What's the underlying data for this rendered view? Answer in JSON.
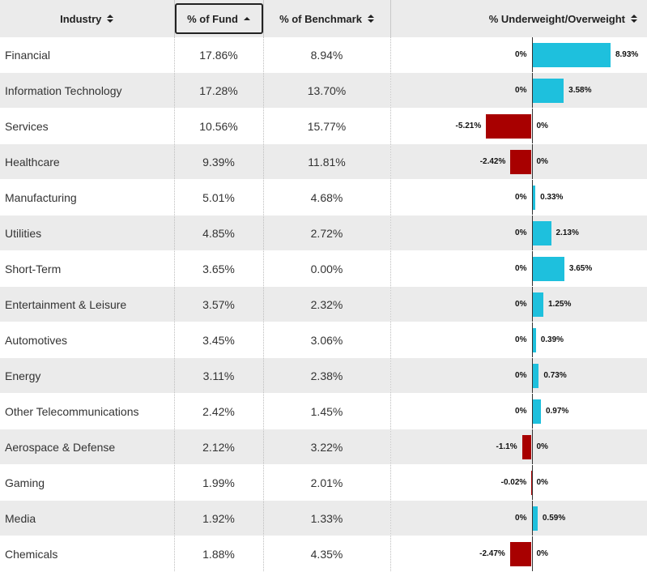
{
  "headers": {
    "industry": "Industry",
    "fund": "% of Fund",
    "benchmark": "% of Benchmark",
    "diff": "% Underweight/Overweight"
  },
  "colors": {
    "overweight": "#1ec0dd",
    "underweight": "#a80000"
  },
  "rows": [
    {
      "industry": "Financial",
      "fund": "17.86%",
      "benchmark": "8.94%",
      "diff_label": "8.93%",
      "zero_label": "0%"
    },
    {
      "industry": "Information Technology",
      "fund": "17.28%",
      "benchmark": "13.70%",
      "diff_label": "3.58%",
      "zero_label": "0%"
    },
    {
      "industry": "Services",
      "fund": "10.56%",
      "benchmark": "15.77%",
      "diff_label": "-5.21%",
      "zero_label": "0%"
    },
    {
      "industry": "Healthcare",
      "fund": "9.39%",
      "benchmark": "11.81%",
      "diff_label": "-2.42%",
      "zero_label": "0%"
    },
    {
      "industry": "Manufacturing",
      "fund": "5.01%",
      "benchmark": "4.68%",
      "diff_label": "0.33%",
      "zero_label": "0%"
    },
    {
      "industry": "Utilities",
      "fund": "4.85%",
      "benchmark": "2.72%",
      "diff_label": "2.13%",
      "zero_label": "0%"
    },
    {
      "industry": "Short-Term",
      "fund": "3.65%",
      "benchmark": "0.00%",
      "diff_label": "3.65%",
      "zero_label": "0%"
    },
    {
      "industry": "Entertainment & Leisure",
      "fund": "3.57%",
      "benchmark": "2.32%",
      "diff_label": "1.25%",
      "zero_label": "0%"
    },
    {
      "industry": "Automotives",
      "fund": "3.45%",
      "benchmark": "3.06%",
      "diff_label": "0.39%",
      "zero_label": "0%"
    },
    {
      "industry": "Energy",
      "fund": "3.11%",
      "benchmark": "2.38%",
      "diff_label": "0.73%",
      "zero_label": "0%"
    },
    {
      "industry": "Other Telecommunications",
      "fund": "2.42%",
      "benchmark": "1.45%",
      "diff_label": "0.97%",
      "zero_label": "0%"
    },
    {
      "industry": "Aerospace & Defense",
      "fund": "2.12%",
      "benchmark": "3.22%",
      "diff_label": "-1.1%",
      "zero_label": "0%"
    },
    {
      "industry": "Gaming",
      "fund": "1.99%",
      "benchmark": "2.01%",
      "diff_label": "-0.02%",
      "zero_label": "0%"
    },
    {
      "industry": "Media",
      "fund": "1.92%",
      "benchmark": "1.33%",
      "diff_label": "0.59%",
      "zero_label": "0%"
    },
    {
      "industry": "Chemicals",
      "fund": "1.88%",
      "benchmark": "4.35%",
      "diff_label": "-2.47%",
      "zero_label": "0%"
    }
  ],
  "chart_data": {
    "type": "bar",
    "orientation": "horizontal",
    "categories": [
      "Financial",
      "Information Technology",
      "Services",
      "Healthcare",
      "Manufacturing",
      "Utilities",
      "Short-Term",
      "Entertainment & Leisure",
      "Automotives",
      "Energy",
      "Other Telecommunications",
      "Aerospace & Defense",
      "Gaming",
      "Media",
      "Chemicals"
    ],
    "series": [
      {
        "name": "% of Fund",
        "values": [
          17.86,
          17.28,
          10.56,
          9.39,
          5.01,
          4.85,
          3.65,
          3.57,
          3.45,
          3.11,
          2.42,
          2.12,
          1.99,
          1.92,
          1.88
        ]
      },
      {
        "name": "% of Benchmark",
        "values": [
          8.94,
          13.7,
          15.77,
          11.81,
          4.68,
          2.72,
          0.0,
          2.32,
          3.06,
          2.38,
          1.45,
          3.22,
          2.01,
          1.33,
          4.35
        ]
      },
      {
        "name": "% Underweight/Overweight",
        "values": [
          8.93,
          3.58,
          -5.21,
          -2.42,
          0.33,
          2.13,
          3.65,
          1.25,
          0.39,
          0.73,
          0.97,
          -1.1,
          -0.02,
          0.59,
          -2.47
        ]
      }
    ],
    "sort": {
      "column": "% of Fund",
      "direction": "descending"
    }
  }
}
